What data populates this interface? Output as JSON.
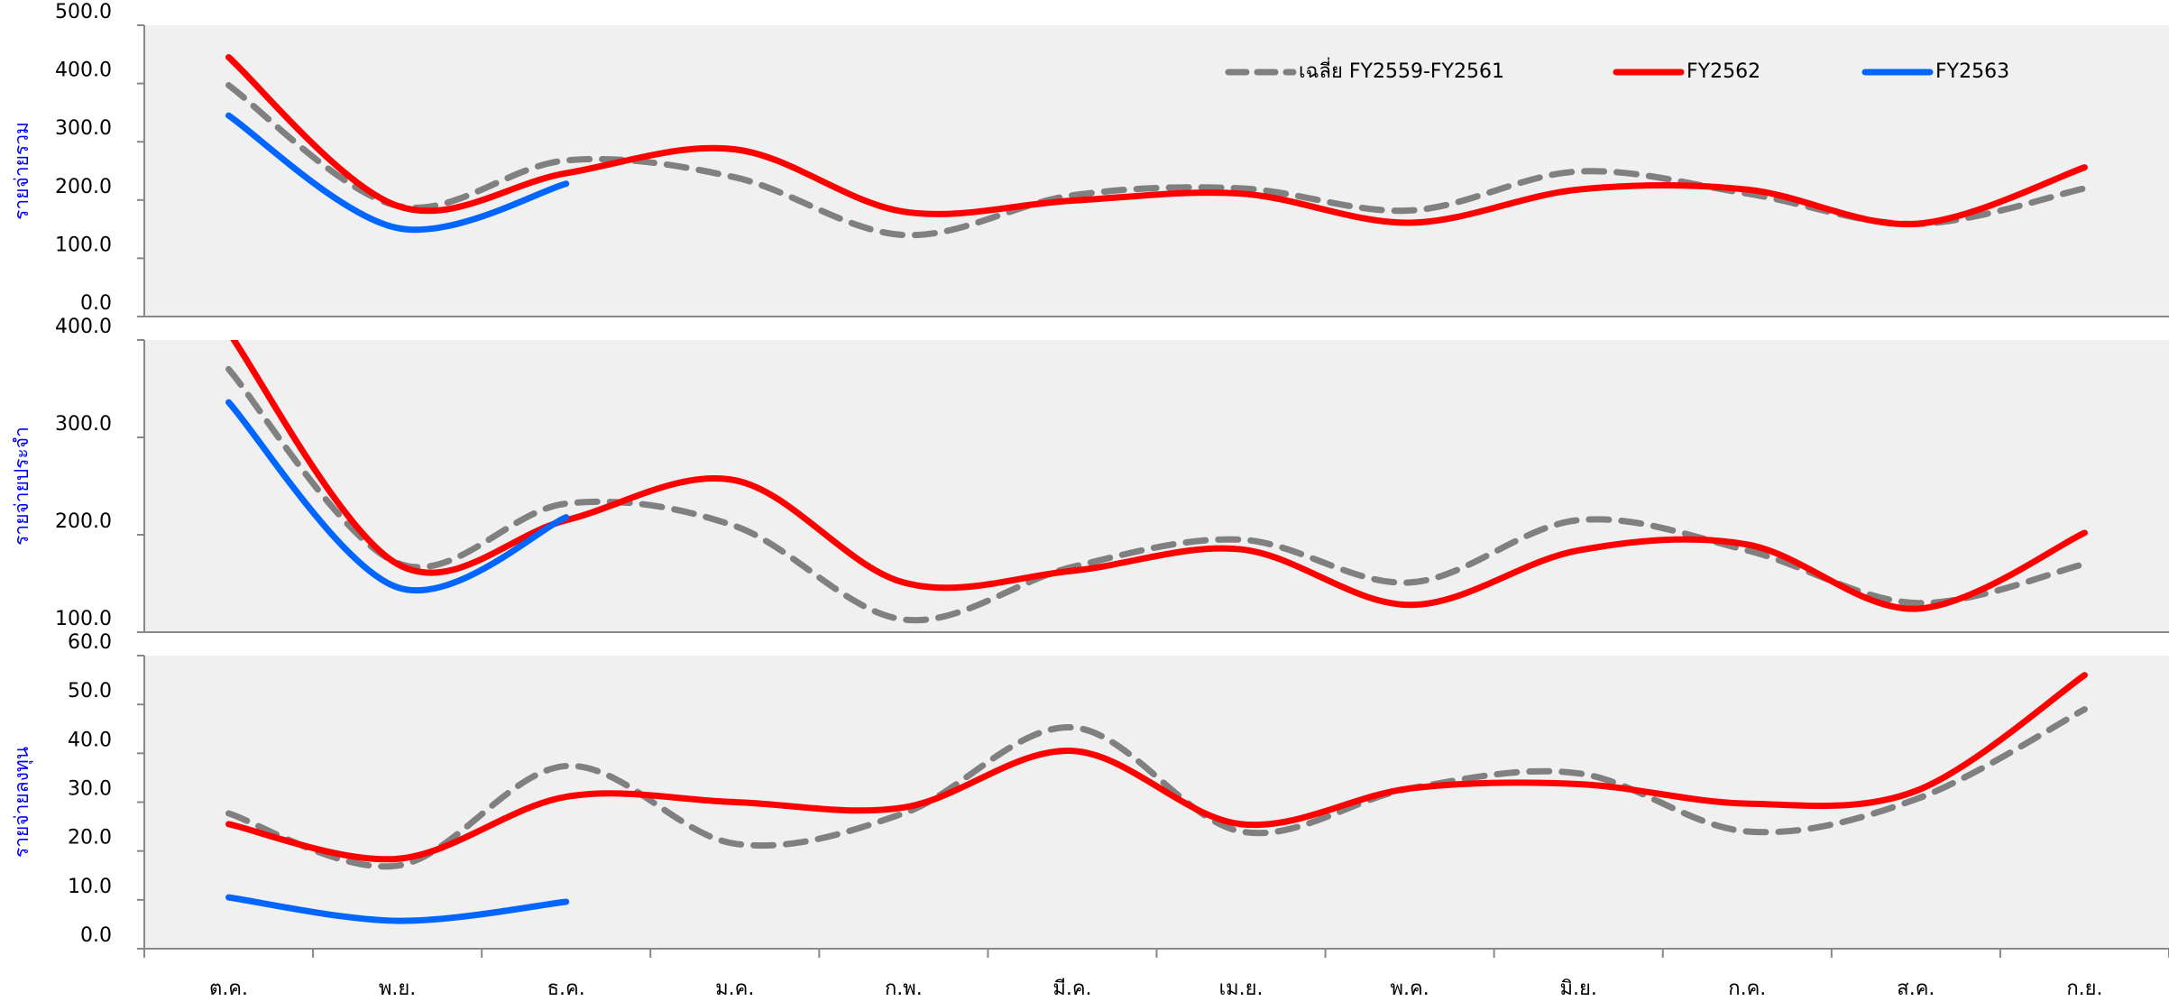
{
  "chart_data": {
    "type": "line",
    "categories": [
      "ต.ค.",
      "พ.ย.",
      "ธ.ค.",
      "ม.ค.",
      "ก.พ.",
      "มี.ค.",
      "เม.ย.",
      "พ.ค.",
      "มิ.ย.",
      "ก.ค.",
      "ส.ค.",
      "ก.ย."
    ],
    "series": [
      {
        "name": "เฉลี่ย FY2559-FY2561",
        "color": "#808080",
        "dashed": true
      },
      {
        "name": "FY2562",
        "color": "#ff0000",
        "dashed": false
      },
      {
        "name": "FY2563",
        "color": "#0066ff",
        "dashed": false
      }
    ],
    "legend": "top-right",
    "panels": [
      {
        "y_label": "รายจ่ายรวม",
        "ylim": [
          0,
          500
        ],
        "yticks": [
          {
            "value": 0,
            "label": "0.0"
          },
          {
            "value": 100,
            "label": "100.0"
          },
          {
            "value": 200,
            "label": "200.0"
          },
          {
            "value": 300,
            "label": "300.0"
          },
          {
            "value": 400,
            "label": "400.0"
          },
          {
            "value": 500,
            "label": "500.0"
          }
        ],
        "values": [
          [
            397,
            190,
            268,
            239,
            140,
            208,
            220,
            182,
            249,
            211,
            159,
            220
          ],
          [
            445,
            190,
            246,
            287,
            180,
            199,
            211,
            161,
            218,
            218,
            159,
            256
          ],
          [
            345,
            152,
            228,
            null,
            null,
            null,
            null,
            null,
            null,
            null,
            null,
            null
          ]
        ]
      },
      {
        "y_label": "รายจ่ายประจำ",
        "ylim": [
          100,
          400
        ],
        "yticks": [
          {
            "value": 100,
            "label": "100.0"
          },
          {
            "value": 200,
            "label": "200.0"
          },
          {
            "value": 300,
            "label": "300.0"
          },
          {
            "value": 400,
            "label": "400.0"
          }
        ],
        "values": [
          [
            370,
            171,
            232,
            209,
            113,
            167,
            195,
            151,
            215,
            184,
            130,
            170
          ],
          [
            408,
            170,
            215,
            256,
            151,
            163,
            185,
            128,
            184,
            190,
            124,
            202
          ],
          [
            336,
            146,
            218,
            null,
            null,
            null,
            null,
            null,
            null,
            null,
            null,
            null
          ]
        ]
      },
      {
        "y_label": "รายจ่ายลงทุน",
        "ylim": [
          0,
          60
        ],
        "yticks": [
          {
            "value": 0,
            "label": "0.0"
          },
          {
            "value": 10,
            "label": "10.0"
          },
          {
            "value": 20,
            "label": "20.0"
          },
          {
            "value": 30,
            "label": "30.0"
          },
          {
            "value": 40,
            "label": "40.0"
          },
          {
            "value": 50,
            "label": "50.0"
          },
          {
            "value": 60,
            "label": "60.0"
          }
        ],
        "values": [
          [
            27.7,
            17,
            37.4,
            21.5,
            27.7,
            45.3,
            24,
            32.8,
            35.9,
            24,
            30.6,
            49
          ],
          [
            25.5,
            18.4,
            31.1,
            30,
            28.9,
            40.5,
            25.5,
            32.8,
            33.7,
            29.7,
            32.3,
            56
          ],
          [
            10.5,
            5.7,
            9.6,
            null,
            null,
            null,
            null,
            null,
            null,
            null,
            null,
            null
          ]
        ]
      }
    ]
  }
}
